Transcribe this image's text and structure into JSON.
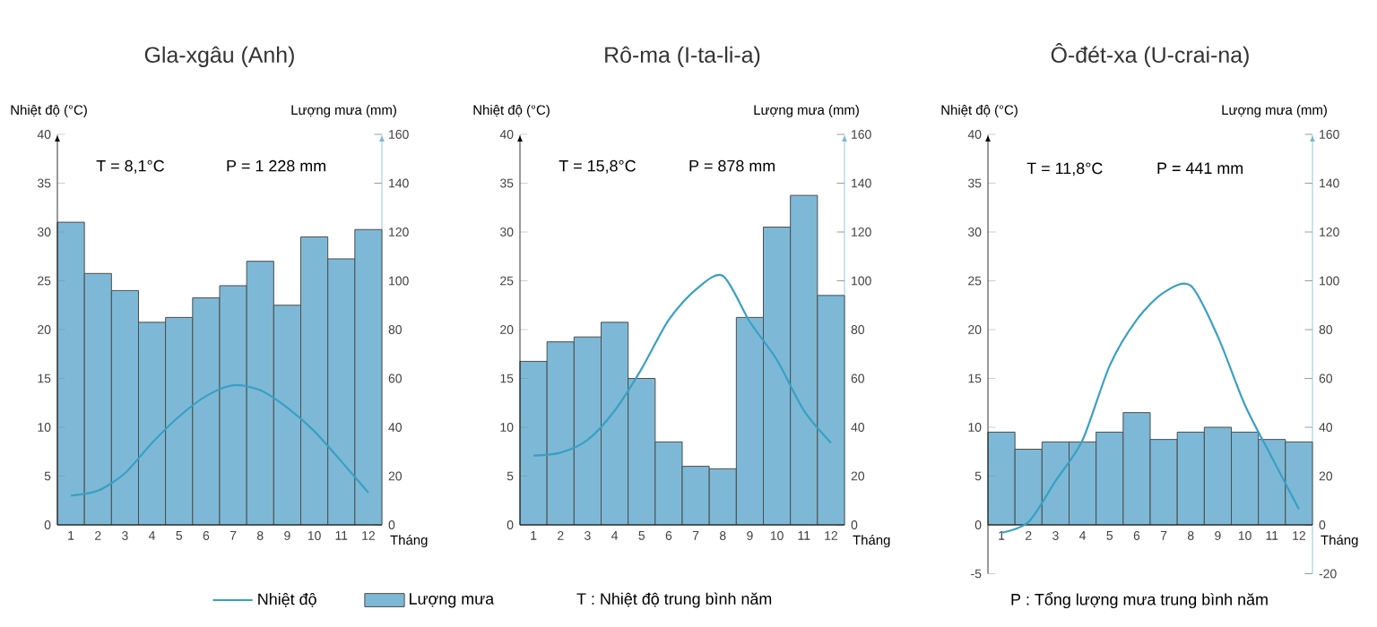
{
  "chart_data": [
    {
      "type": "bar",
      "title": "Gla-xgâu (Anh)",
      "xlabel": "Tháng",
      "ylabel": "Nhiệt độ (°C)",
      "y2label": "Lượng mưa (mm)",
      "categories": [
        "1",
        "2",
        "3",
        "4",
        "5",
        "6",
        "7",
        "8",
        "9",
        "10",
        "11",
        "12"
      ],
      "series": [
        {
          "name": "Lượng mưa",
          "axis": "y2",
          "color": "#7db9d6",
          "values": [
            124,
            103,
            96,
            83,
            85,
            93,
            98,
            108,
            90,
            118,
            109,
            121
          ]
        },
        {
          "name": "Nhiệt độ",
          "type": "line",
          "color": "#3a9fc4",
          "values": [
            3.0,
            3.5,
            5.3,
            8.4,
            11.1,
            13.2,
            14.3,
            13.8,
            12.0,
            9.6,
            6.5,
            3.3
          ]
        }
      ],
      "ylim": [
        0,
        40
      ],
      "yticks": [
        0,
        5,
        10,
        15,
        20,
        25,
        30,
        35,
        40
      ],
      "y2lim": [
        0,
        160
      ],
      "y2ticks": [
        0,
        20,
        40,
        60,
        80,
        100,
        120,
        140,
        160
      ],
      "legend": "bottom",
      "annotations": [
        "T = 8,1°C",
        "P = 1 228 mm",
        "T : Nhiệt độ trung bình năm",
        "P : Tổng lượng mưa trung bình năm"
      ]
    },
    {
      "type": "bar",
      "title": "Rô-ma (I-ta-li-a)",
      "xlabel": "Tháng",
      "ylabel": "Nhiệt độ (°C)",
      "y2label": "Lượng mưa (mm)",
      "categories": [
        "1",
        "2",
        "3",
        "4",
        "5",
        "6",
        "7",
        "8",
        "9",
        "10",
        "11",
        "12"
      ],
      "series": [
        {
          "axis": "y2",
          "color": "#7db9d6",
          "values": [
            67,
            75,
            77,
            83,
            60,
            34,
            24,
            23,
            85,
            122,
            135,
            94
          ]
        },
        {
          "type": "line",
          "color": "#3a9fc4",
          "values": [
            7.1,
            7.4,
            8.7,
            11.7,
            16.0,
            21.0,
            24.1,
            25.5,
            20.8,
            16.9,
            11.7,
            8.4
          ]
        }
      ],
      "ylim": [
        0,
        40
      ],
      "yticks": [
        0,
        5,
        10,
        15,
        20,
        25,
        30,
        35,
        40
      ],
      "y2lim": [
        0,
        160
      ],
      "y2ticks": [
        0,
        20,
        40,
        60,
        80,
        100,
        120,
        140,
        160
      ],
      "annotations": [
        "T = 15,8°C",
        "P = 878 mm"
      ]
    },
    {
      "type": "bar",
      "title": "Ô-đét-xa (U-crai-na)",
      "xlabel": "Tháng",
      "ylabel": "Nhiệt độ (°C)",
      "y2label": "Lượng mưa (mm)",
      "categories": [
        "1",
        "2",
        "3",
        "4",
        "5",
        "6",
        "7",
        "8",
        "9",
        "10",
        "11",
        "12"
      ],
      "series": [
        {
          "axis": "y2",
          "color": "#7db9d6",
          "values": [
            38,
            31,
            34,
            34,
            38,
            46,
            35,
            38,
            40,
            38,
            35,
            34
          ]
        },
        {
          "type": "line",
          "color": "#3a9fc4",
          "values": [
            -0.8,
            0.3,
            4.5,
            8.7,
            16.3,
            21.0,
            23.8,
            24.5,
            19.3,
            12.3,
            6.9,
            1.6
          ]
        }
      ],
      "ylim": [
        -5,
        40
      ],
      "yticks": [
        -5,
        0,
        5,
        10,
        15,
        20,
        25,
        30,
        35,
        40
      ],
      "y2lim": [
        -20,
        160
      ],
      "y2ticks": [
        -20,
        0,
        20,
        40,
        60,
        80,
        100,
        120,
        140,
        160
      ],
      "annotations": [
        "T = 11,8°C",
        "P = 441 mm"
      ]
    }
  ]
}
